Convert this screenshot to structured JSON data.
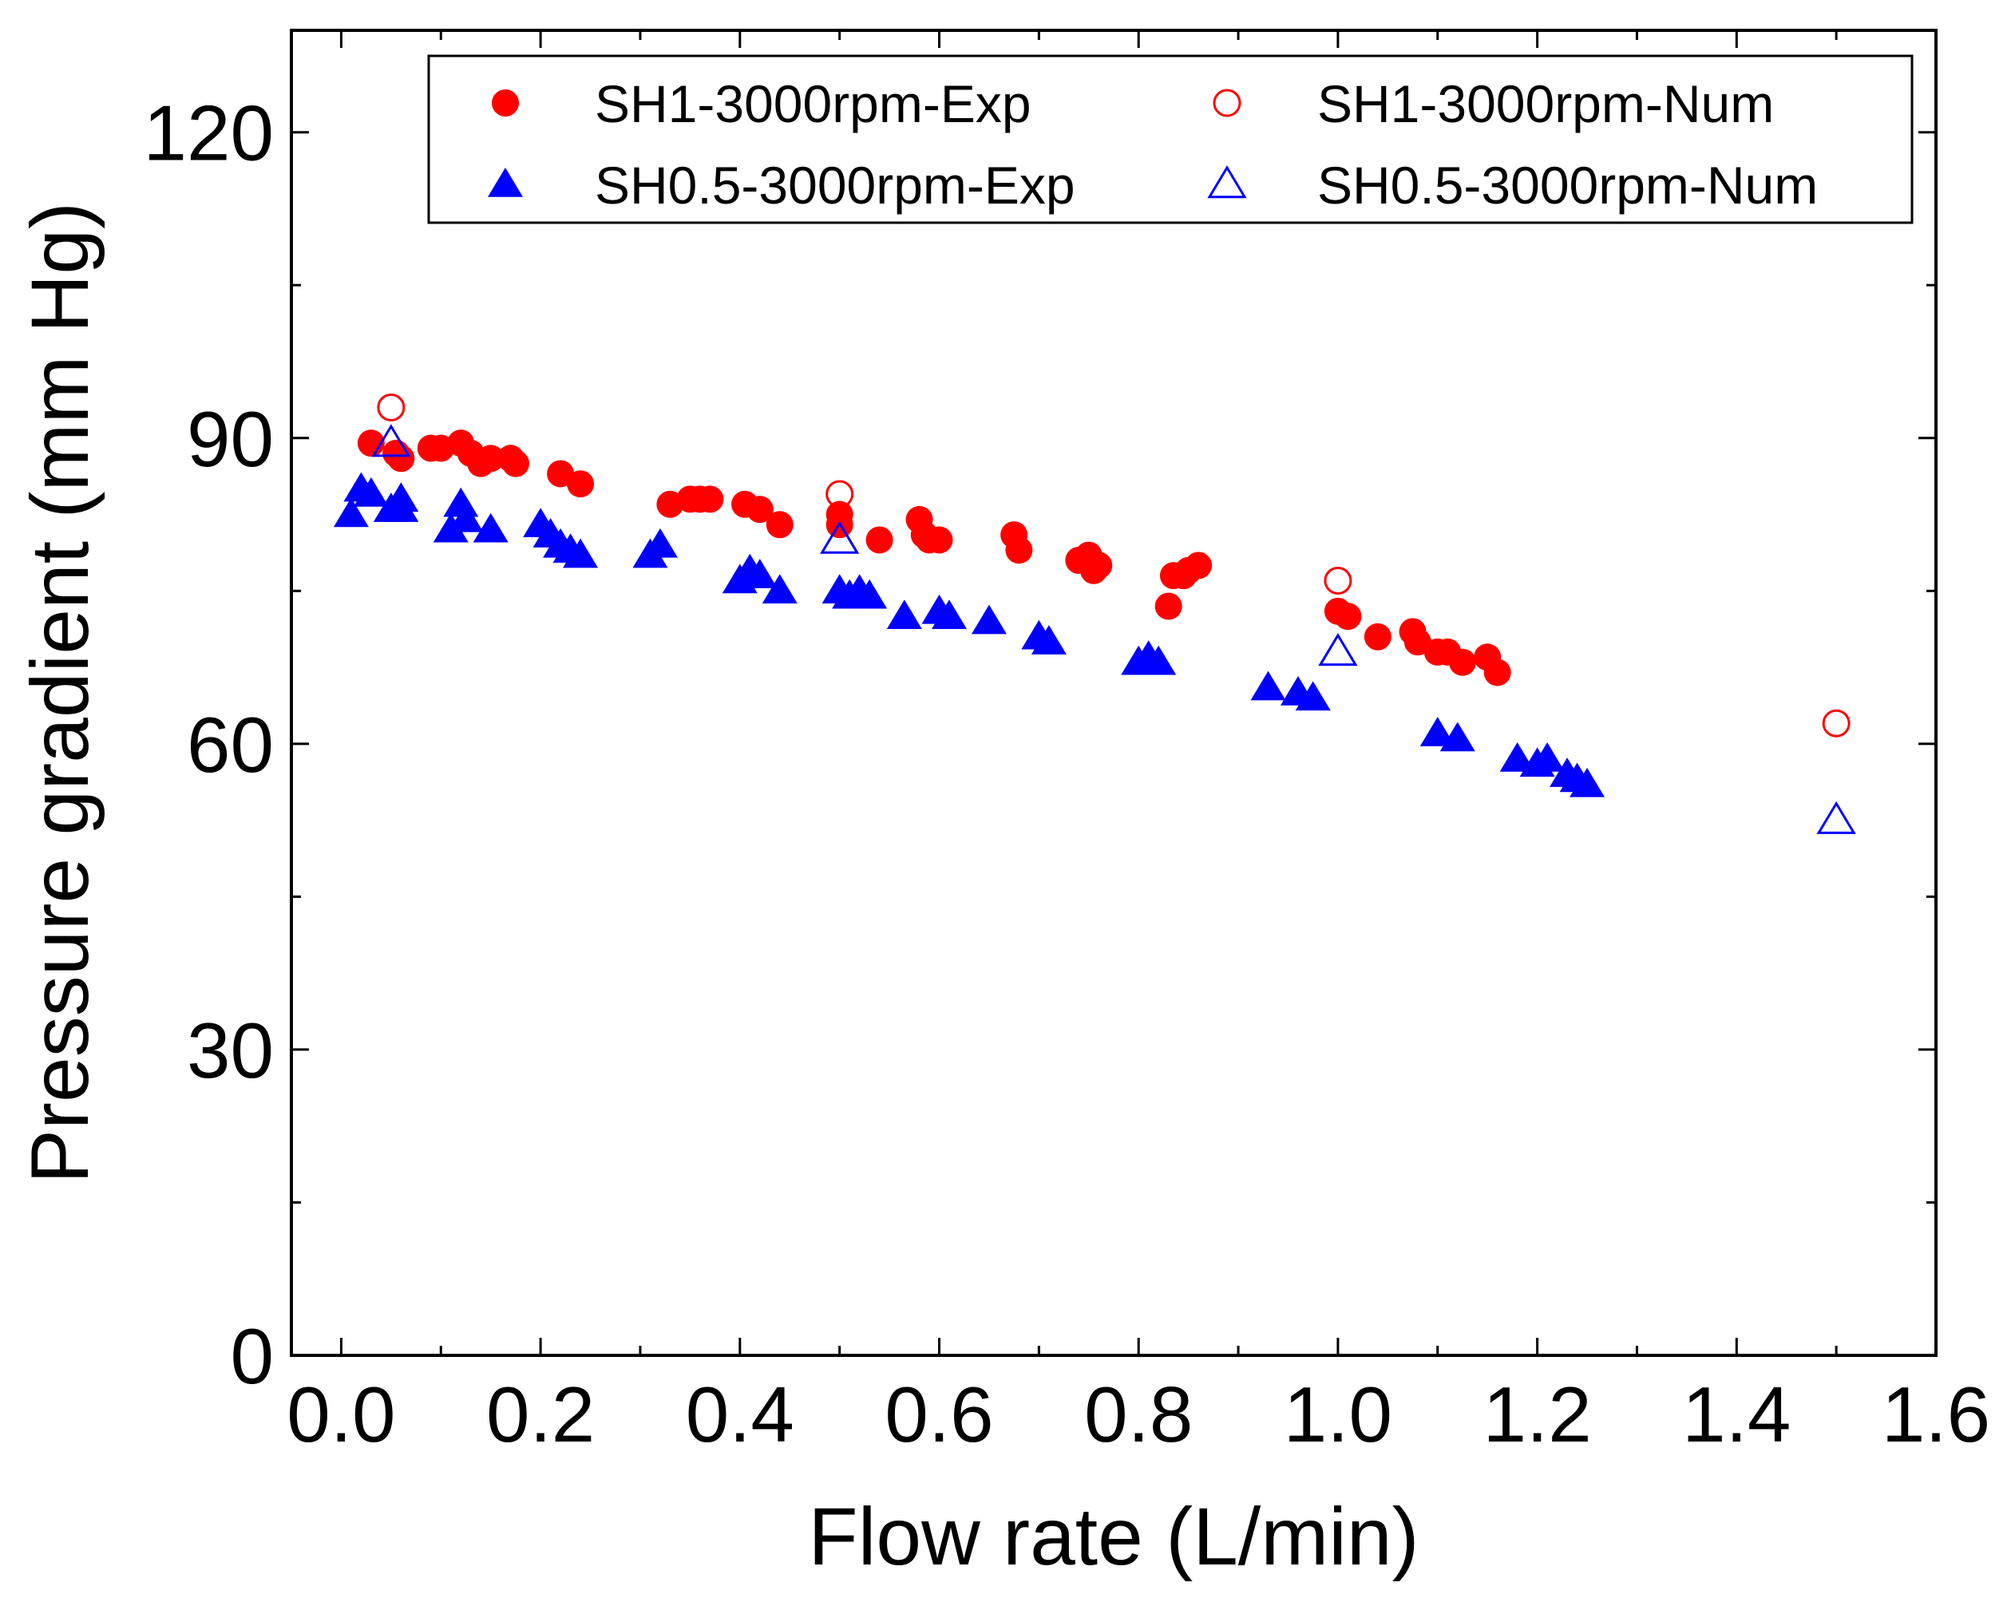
{
  "chart_data": {
    "type": "scatter",
    "title": "",
    "xlabel": "Flow rate (L/min)",
    "ylabel": "Pressure gradient (mm Hg)",
    "xlim": [
      -0.05,
      1.6
    ],
    "ylim": [
      0,
      130
    ],
    "xticks": [
      0.0,
      0.2,
      0.4,
      0.6,
      0.8,
      1.0,
      1.2,
      1.4,
      1.6
    ],
    "xtick_labels": [
      "0.0",
      "0.2",
      "0.4",
      "0.6",
      "0.8",
      "1.0",
      "1.2",
      "1.4",
      "1.6"
    ],
    "yticks": [
      0,
      30,
      60,
      90,
      120
    ],
    "ytick_labels": [
      "0",
      "30",
      "60",
      "90",
      "120"
    ],
    "grid": false,
    "legend_position": "top-right",
    "series": [
      {
        "name": "SH1-3000rpm-Exp",
        "marker": "circle-filled",
        "color": "#ff0000",
        "points": [
          [
            0.03,
            89.5
          ],
          [
            0.055,
            88.5
          ],
          [
            0.06,
            88
          ],
          [
            0.09,
            89
          ],
          [
            0.1,
            89
          ],
          [
            0.12,
            89.5
          ],
          [
            0.13,
            88.5
          ],
          [
            0.14,
            87.5
          ],
          [
            0.15,
            88
          ],
          [
            0.17,
            88
          ],
          [
            0.175,
            87.5
          ],
          [
            0.22,
            86.5
          ],
          [
            0.24,
            85.5
          ],
          [
            0.33,
            83.5
          ],
          [
            0.35,
            84
          ],
          [
            0.36,
            84
          ],
          [
            0.37,
            84
          ],
          [
            0.405,
            83.5
          ],
          [
            0.42,
            83
          ],
          [
            0.44,
            81.5
          ],
          [
            0.5,
            82.5
          ],
          [
            0.5,
            81.5
          ],
          [
            0.54,
            80
          ],
          [
            0.58,
            82
          ],
          [
            0.585,
            80.5
          ],
          [
            0.59,
            80
          ],
          [
            0.6,
            80
          ],
          [
            0.675,
            80.5
          ],
          [
            0.68,
            79
          ],
          [
            0.74,
            78
          ],
          [
            0.75,
            78.5
          ],
          [
            0.755,
            77
          ],
          [
            0.76,
            77.5
          ],
          [
            0.83,
            73.5
          ],
          [
            0.835,
            76.5
          ],
          [
            0.845,
            76.5
          ],
          [
            0.85,
            77
          ],
          [
            0.86,
            77.5
          ],
          [
            1.0,
            73
          ],
          [
            1.01,
            72.5
          ],
          [
            1.04,
            70.5
          ],
          [
            1.075,
            71
          ],
          [
            1.08,
            70
          ],
          [
            1.1,
            69
          ],
          [
            1.11,
            69
          ],
          [
            1.125,
            68
          ],
          [
            1.15,
            68.5
          ],
          [
            1.16,
            67
          ]
        ]
      },
      {
        "name": "SH1-3000rpm-Num",
        "marker": "circle-open",
        "color": "#ff0000",
        "points": [
          [
            0.05,
            93
          ],
          [
            0.5,
            84.5
          ],
          [
            1.0,
            76
          ],
          [
            1.5,
            62
          ]
        ]
      },
      {
        "name": "SH0.5-3000rpm-Exp",
        "marker": "triangle-filled",
        "color": "#0000ff",
        "points": [
          [
            0.01,
            82.5
          ],
          [
            0.02,
            85
          ],
          [
            0.03,
            84.5
          ],
          [
            0.05,
            83
          ],
          [
            0.06,
            84
          ],
          [
            0.06,
            83
          ],
          [
            0.11,
            81
          ],
          [
            0.12,
            83.5
          ],
          [
            0.125,
            82
          ],
          [
            0.15,
            81
          ],
          [
            0.2,
            81.5
          ],
          [
            0.21,
            80.5
          ],
          [
            0.22,
            79.5
          ],
          [
            0.23,
            79
          ],
          [
            0.24,
            78.5
          ],
          [
            0.31,
            78.5
          ],
          [
            0.32,
            79.5
          ],
          [
            0.4,
            76
          ],
          [
            0.41,
            77
          ],
          [
            0.42,
            76.5
          ],
          [
            0.44,
            75
          ],
          [
            0.5,
            75
          ],
          [
            0.51,
            74.5
          ],
          [
            0.52,
            75
          ],
          [
            0.53,
            74.5
          ],
          [
            0.565,
            72.5
          ],
          [
            0.6,
            73
          ],
          [
            0.61,
            72.5
          ],
          [
            0.65,
            72
          ],
          [
            0.7,
            70.5
          ],
          [
            0.71,
            70
          ],
          [
            0.8,
            68
          ],
          [
            0.81,
            68.5
          ],
          [
            0.82,
            68
          ],
          [
            0.93,
            65.5
          ],
          [
            0.96,
            65
          ],
          [
            0.975,
            64.5
          ],
          [
            1.1,
            61
          ],
          [
            1.12,
            60.5
          ],
          [
            1.18,
            58.5
          ],
          [
            1.2,
            58
          ],
          [
            1.21,
            58.5
          ],
          [
            1.23,
            57
          ],
          [
            1.24,
            56.5
          ],
          [
            1.25,
            56
          ]
        ]
      },
      {
        "name": "SH0.5-3000rpm-Num",
        "marker": "triangle-open",
        "color": "#0000ff",
        "points": [
          [
            0.05,
            89.5
          ],
          [
            0.5,
            80
          ],
          [
            1.0,
            69
          ],
          [
            1.5,
            52.5
          ]
        ]
      }
    ],
    "legend_order": [
      0,
      1,
      2,
      3
    ]
  }
}
